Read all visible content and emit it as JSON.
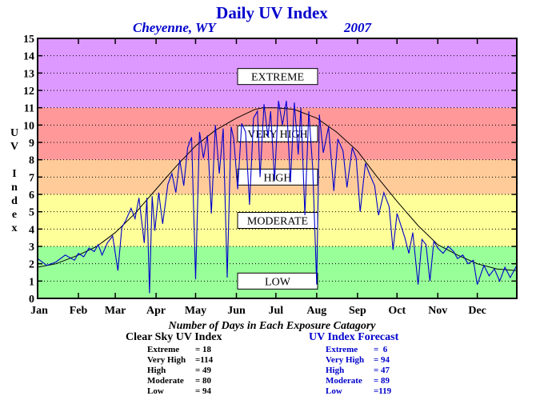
{
  "title": "Daily UV Index",
  "location": "Cheyenne, WY",
  "year": "2007",
  "ylabel_letters": [
    "U",
    "V",
    "",
    "I",
    "n",
    "d",
    "e",
    "x"
  ],
  "counts_title": "Number of Days in Each Exposure Catagory",
  "clear_sky": {
    "heading": "Clear Sky UV Index",
    "rows": [
      {
        "name": "Extreme",
        "value": "= 18"
      },
      {
        "name": "Very High",
        "value": "=114"
      },
      {
        "name": "High",
        "value": "= 49"
      },
      {
        "name": "Moderate",
        "value": "= 80"
      },
      {
        "name": "Low",
        "value": "= 94"
      }
    ]
  },
  "forecast": {
    "heading": "UV Index Forecast",
    "rows": [
      {
        "name": "Extreme",
        "value": "=  6"
      },
      {
        "name": "Very High",
        "value": "= 94"
      },
      {
        "name": "High",
        "value": "= 47"
      },
      {
        "name": "Moderate",
        "value": "= 89"
      },
      {
        "name": "Low",
        "value": "=119"
      }
    ]
  },
  "chart_data": {
    "type": "line",
    "title": "Daily UV Index",
    "xlabel": "",
    "ylabel": "UV Index",
    "ylim": [
      0,
      15
    ],
    "xlim": [
      1,
      365
    ],
    "grid": true,
    "month_labels": [
      "Jan",
      "Feb",
      "Mar",
      "Apr",
      "May",
      "Jun",
      "Jul",
      "Aug",
      "Sep",
      "Oct",
      "Nov",
      "Dec"
    ],
    "month_start_days": [
      1,
      32,
      60,
      91,
      121,
      152,
      182,
      213,
      244,
      274,
      305,
      335
    ],
    "y_ticks": [
      0,
      1,
      2,
      3,
      4,
      5,
      6,
      7,
      8,
      9,
      10,
      11,
      12,
      13,
      14,
      15
    ],
    "bands": [
      {
        "label": "LOW",
        "from": 0,
        "to": 3,
        "color": "#99ff99",
        "label_y": 1
      },
      {
        "label": "MODERATE",
        "from": 3,
        "to": 6,
        "color": "#ffff99",
        "label_y": 4.5
      },
      {
        "label": "HIGH",
        "from": 6,
        "to": 8,
        "color": "#ffcc99",
        "label_y": 7
      },
      {
        "label": "VERY HIGH",
        "from": 8,
        "to": 11,
        "color": "#ff9999",
        "label_y": 9.5
      },
      {
        "label": "EXTREME",
        "from": 11,
        "to": 15,
        "color": "#dd99ff",
        "label_y": 12.8
      }
    ],
    "series": [
      {
        "name": "Clear Sky UV Index",
        "color": "#000000",
        "x": [
          1,
          15,
          32,
          46,
          60,
          75,
          91,
          106,
          121,
          136,
          152,
          166,
          172,
          182,
          196,
          213,
          228,
          244,
          258,
          274,
          290,
          305,
          320,
          335,
          350,
          365
        ],
        "y": [
          1.8,
          2.0,
          2.5,
          3.0,
          3.8,
          4.9,
          6.3,
          7.6,
          8.8,
          9.7,
          10.4,
          10.9,
          11.0,
          11.0,
          10.9,
          10.4,
          9.6,
          8.5,
          7.1,
          5.6,
          4.2,
          3.1,
          2.5,
          2.0,
          1.7,
          1.6
        ]
      },
      {
        "name": "UV Index Forecast",
        "color": "#0000cc",
        "x": [
          1,
          8,
          15,
          22,
          29,
          32,
          36,
          40,
          44,
          47,
          50,
          54,
          58,
          62,
          65,
          68,
          72,
          75,
          78,
          82,
          84,
          86,
          88,
          90,
          93,
          96,
          100,
          103,
          106,
          109,
          112,
          115,
          118,
          121,
          124,
          127,
          130,
          133,
          136,
          139,
          142,
          145,
          148,
          150,
          153,
          156,
          159,
          162,
          165,
          168,
          170,
          173,
          176,
          178,
          181,
          184,
          187,
          190,
          193,
          196,
          199,
          201,
          204,
          207,
          210,
          213,
          215,
          218,
          222,
          226,
          229,
          233,
          236,
          240,
          243,
          246,
          250,
          253,
          257,
          260,
          264,
          268,
          271,
          274,
          277,
          280,
          283,
          286,
          290,
          293,
          296,
          299,
          302,
          305,
          309,
          313,
          317,
          320,
          324,
          328,
          332,
          335,
          340,
          344,
          348,
          352,
          356,
          360,
          365
        ],
        "y": [
          2.3,
          1.9,
          2.1,
          2.5,
          2.2,
          2.6,
          2.4,
          2.9,
          2.7,
          3.1,
          2.5,
          3.2,
          3.6,
          1.6,
          4.1,
          4.5,
          5.2,
          4.6,
          5.8,
          3.2,
          5.8,
          0.3,
          5.9,
          3.9,
          6.1,
          4.3,
          6.6,
          7.2,
          6.1,
          8.0,
          6.5,
          8.7,
          9.3,
          1.1,
          9.6,
          8.1,
          9.4,
          4.9,
          10.0,
          7.2,
          9.8,
          1.2,
          9.9,
          9.2,
          6.3,
          10.1,
          9.6,
          5.4,
          10.4,
          10.8,
          7.0,
          11.2,
          9.3,
          10.8,
          6.8,
          11.4,
          10.0,
          11.4,
          6.7,
          11.3,
          8.3,
          11.0,
          4.8,
          10.8,
          7.5,
          0.8,
          10.6,
          8.4,
          9.9,
          6.2,
          9.2,
          8.5,
          6.4,
          8.7,
          8.1,
          5.0,
          7.8,
          7.2,
          6.5,
          4.8,
          6.1,
          5.3,
          2.8,
          4.9,
          4.2,
          3.5,
          2.6,
          3.8,
          0.8,
          3.4,
          3.1,
          1.0,
          3.3,
          2.9,
          2.6,
          3.0,
          2.7,
          2.3,
          2.5,
          2.0,
          2.2,
          0.8,
          1.9,
          1.3,
          1.7,
          1.0,
          1.8,
          1.2,
          1.9
        ]
      }
    ]
  }
}
